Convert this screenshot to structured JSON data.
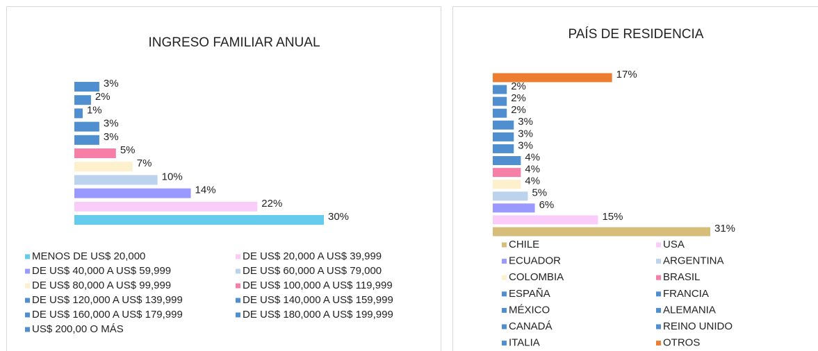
{
  "chart_data": [
    {
      "type": "bar",
      "orientation": "horizontal",
      "title": "INGRESO FAMILIAR ANUAL",
      "categories": [
        "MENOS DE US$ 20,000",
        "DE US$ 20,000 A US$ 39,999",
        "DE US$ 40,000 A US$ 59,999",
        "DE US$ 60,000 A US$ 79,000",
        "DE US$ 80,000 A US$ 99,999",
        "DE US$ 100,000 A US$ 119,999",
        "DE US$ 120,000 A US$ 139,999",
        "DE US$ 140,000 A US$ 159,999",
        "DE US$ 160,000 A US$ 179,999",
        "DE US$ 180,000 A US$ 199,999",
        "US$ 200,00 O MÁS"
      ],
      "values": [
        30,
        22,
        14,
        10,
        7,
        5,
        3,
        3,
        1,
        2,
        3
      ],
      "value_labels": [
        "30%",
        "22%",
        "14%",
        "10%",
        "7%",
        "5%",
        "3%",
        "3%",
        "1%",
        "2%",
        "3%"
      ],
      "colors": [
        "#66ccee",
        "#f9ccf9",
        "#9999ff",
        "#bcd3ee",
        "#fdf0cc",
        "#f67fa8",
        "#4f8fd0",
        "#4f8fd0",
        "#4f8fd0",
        "#4f8fd0",
        "#4f8fd0"
      ],
      "xlim": [
        0,
        30
      ],
      "legend": "bottom"
    },
    {
      "type": "bar",
      "orientation": "horizontal",
      "title": "PAÍS DE RESIDENCIA",
      "categories": [
        "CHILE",
        "USA",
        "ECUADOR",
        "ARGENTINA",
        "COLOMBIA",
        "BRASIL",
        "ESPAÑA",
        "FRANCIA",
        "MÉXICO",
        "ALEMANIA",
        "CANADÁ",
        "REINO UNIDO",
        "ITALIA",
        "OTROS"
      ],
      "values": [
        31,
        15,
        6,
        5,
        4,
        4,
        4,
        3,
        3,
        3,
        2,
        2,
        2,
        17
      ],
      "value_labels": [
        "31%",
        "15%",
        "6%",
        "5%",
        "4%",
        "4%",
        "4%",
        "3%",
        "3%",
        "3%",
        "2%",
        "2%",
        "2%",
        "17%"
      ],
      "colors": [
        "#d6bd7a",
        "#f9ccf9",
        "#9999ff",
        "#bcd3ee",
        "#fdf0cc",
        "#f67fa8",
        "#4f8fd0",
        "#4f8fd0",
        "#4f8fd0",
        "#4f8fd0",
        "#4f8fd0",
        "#4f8fd0",
        "#4f8fd0",
        "#ed7d31"
      ],
      "xlim": [
        0,
        31
      ],
      "legend": "bottom"
    }
  ]
}
